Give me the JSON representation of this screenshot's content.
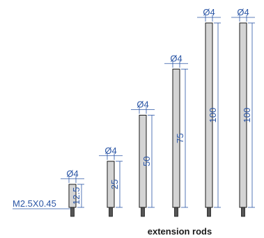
{
  "diameter_label": "Ø4",
  "thread_label": "M2.5X0.45",
  "rods": [
    {
      "length": 12.5,
      "length_label": "12.5"
    },
    {
      "length": 25,
      "length_label": "25"
    },
    {
      "length": 50,
      "length_label": "50"
    },
    {
      "length": 75,
      "length_label": "75"
    },
    {
      "length": 100,
      "length_label": "100"
    },
    {
      "length": 100,
      "length_label": "100"
    }
  ],
  "caption": "extension rods",
  "colors": {
    "dimension": "#2a55a5",
    "rod_fill": "#d4d4d4",
    "thread": "#555555",
    "outline": "#1a1a1a"
  }
}
